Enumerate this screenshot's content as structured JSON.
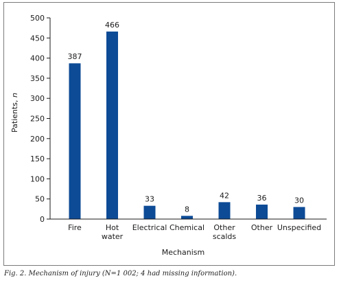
{
  "chart_data": {
    "type": "bar",
    "categories": [
      [
        "Fire"
      ],
      [
        "Hot",
        "water"
      ],
      [
        "Electrical"
      ],
      [
        "Chemical"
      ],
      [
        "Other",
        "scalds"
      ],
      [
        "Other"
      ],
      [
        "Unspecified"
      ]
    ],
    "values": [
      387,
      466,
      33,
      8,
      42,
      36,
      30
    ],
    "data_labels": [
      "387",
      "466",
      "33",
      "8",
      "42",
      "36",
      "30"
    ],
    "xlabel": "Mechanism",
    "ylabel": "Patients, n",
    "ylabel_text": "Patients, ",
    "ylabel_italic": "n",
    "ylim": [
      0,
      500
    ],
    "yticks": [
      0,
      50,
      100,
      150,
      200,
      250,
      300,
      350,
      400,
      450,
      500
    ],
    "bar_color": "#0d4b96",
    "grid": false
  },
  "caption": "Fig. 2. Mechanism of injury (N=1 002; 4 had missing information)."
}
